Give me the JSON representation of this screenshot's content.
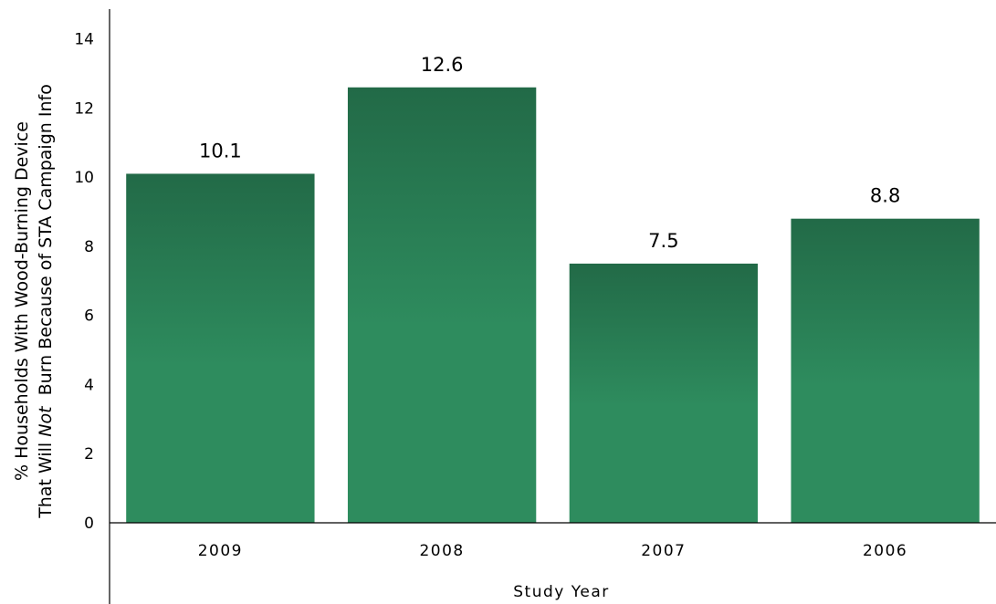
{
  "chart_data": {
    "type": "bar",
    "title": "",
    "xlabel": "Study Year",
    "ylabel_line1": "% Households With Wood-Burning Device",
    "ylabel_line2_prefix": "That Will ",
    "ylabel_line2_italic": "Not",
    "ylabel_line2_suffix": "  Burn Because of STA Campaign Info",
    "categories": [
      "2009",
      "2008",
      "2007",
      "2006"
    ],
    "values": [
      10.1,
      12.6,
      7.5,
      8.8
    ],
    "data_labels": [
      "10.1",
      "12.6",
      "7.5",
      "8.8"
    ],
    "yticks": [
      "0",
      "2",
      "4",
      "6",
      "8",
      "10",
      "12",
      "14"
    ],
    "ylim": [
      0,
      14.6
    ],
    "grid": false,
    "legend": "none",
    "colors": {
      "bar_top": "#226a47",
      "bar_bottom": "#2e8c5e",
      "axis": "#000000"
    }
  }
}
